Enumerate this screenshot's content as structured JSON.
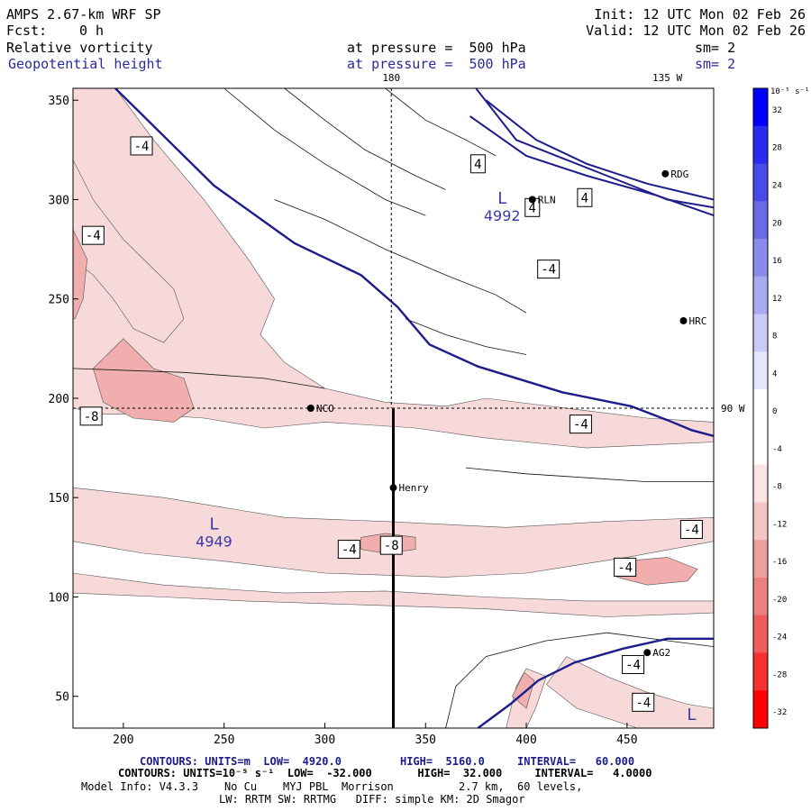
{
  "header": {
    "model": "AMPS 2.67-km WRF SP",
    "init": "Init: 12 UTC Mon 02 Feb 26",
    "fcst_label": "Fcst:",
    "fcst_value": "0 h",
    "valid": "Valid: 12 UTC Mon 02 Feb 26",
    "field1": "Relative vorticity",
    "field1_level": "at pressure =  500 hPa",
    "field1_sm": "sm= 2",
    "field2": "Geopotential height",
    "field2_level": "at pressure =  500 hPa",
    "field2_sm": "sm= 2"
  },
  "footer": {
    "line1": "CONTOURS: UNITS=m  LOW=  4920.0         HIGH=  5160.0     INTERVAL=   60.000",
    "line2": "CONTOURS: UNITS=10⁻⁵ s⁻¹  LOW=  -32.000       HIGH=  32.000     INTERVAL=   4.0000",
    "line3": "Model Info: V4.3.3    No Cu    MYJ PBL  Morrison          2.7 km,  60 levels,",
    "line4": "LW: RRTM SW: RRTMG   DIFF: simple KM: 2D Smagor"
  },
  "colors": {
    "height_contour": "#1c1c8c",
    "neg_light": "#f7d9d9",
    "neg_mid": "#f0aeae",
    "neg_strong": "#e87878",
    "neg_max": "#ff0000",
    "pos_max": "#0000ff"
  },
  "chart_data": {
    "type": "heatmap",
    "x_ticks": [
      200,
      250,
      300,
      350,
      400,
      450
    ],
    "y_ticks": [
      50,
      100,
      150,
      200,
      250,
      300,
      350
    ],
    "xlim": [
      175,
      493
    ],
    "ylim": [
      34,
      356
    ],
    "top_labels": [
      {
        "text": "180",
        "x": 333
      },
      {
        "text": "135 W",
        "x": 470
      }
    ],
    "right_labels": [
      {
        "text": "90 W",
        "y": 195
      }
    ],
    "guide_lines": {
      "vertical_x": 333,
      "horizontal_y": 195
    },
    "cross_section": {
      "x": 334,
      "y_from": 34,
      "y_to": 195
    },
    "stations": [
      {
        "name": "NCO",
        "x": 293,
        "y": 195
      },
      {
        "name": "Henry",
        "x": 334,
        "y": 155
      },
      {
        "name": "HRC",
        "x": 478,
        "y": 239
      },
      {
        "name": "RDG",
        "x": 469,
        "y": 313
      },
      {
        "name": "RLN",
        "x": 403,
        "y": 300
      },
      {
        "name": "AG2",
        "x": 460,
        "y": 72
      }
    ],
    "height_lows": [
      {
        "label": "L",
        "value": "4992",
        "x": 388,
        "y": 298
      },
      {
        "label": "L",
        "value": "4949",
        "x": 245,
        "y": 134
      },
      {
        "label": "L",
        "value": "",
        "x": 482,
        "y": 38
      }
    ],
    "height_contours": [
      {
        "points": [
          [
            196,
            356
          ],
          [
            245,
            307
          ],
          [
            285,
            278
          ],
          [
            318,
            262
          ],
          [
            336,
            246
          ],
          [
            352,
            227
          ],
          [
            376,
            216
          ],
          [
            418,
            203
          ],
          [
            452,
            196
          ],
          [
            470,
            189
          ],
          [
            482,
            184
          ],
          [
            493,
            181
          ]
        ]
      },
      {
        "points": [
          [
            376,
            34
          ],
          [
            392,
            46
          ],
          [
            406,
            58
          ],
          [
            424,
            67
          ],
          [
            448,
            74
          ],
          [
            470,
            79
          ],
          [
            493,
            79
          ]
        ]
      }
    ],
    "vorticity_labels": [
      {
        "text": "-4",
        "x": 209,
        "y": 327
      },
      {
        "text": "-4",
        "x": 185,
        "y": 282
      },
      {
        "text": "-8",
        "x": 184,
        "y": 191
      },
      {
        "text": "-4",
        "x": 427,
        "y": 187
      },
      {
        "text": "-4",
        "x": 482,
        "y": 134
      },
      {
        "text": "-4",
        "x": 449,
        "y": 115
      },
      {
        "text": "-4",
        "x": 312,
        "y": 124
      },
      {
        "text": "-8",
        "x": 333,
        "y": 126
      },
      {
        "text": "-4",
        "x": 453,
        "y": 66
      },
      {
        "text": "-4",
        "x": 411,
        "y": 265
      },
      {
        "text": "4",
        "x": 376,
        "y": 318
      },
      {
        "text": "4",
        "x": 403,
        "y": 296
      },
      {
        "text": "4",
        "x": 429,
        "y": 301
      },
      {
        "text": "-4",
        "x": 458,
        "y": 47
      }
    ],
    "colorbar": {
      "unit": "10⁻⁵ s⁻¹",
      "levels": [
        32,
        28,
        24,
        20,
        16,
        12,
        8,
        4,
        0,
        -4,
        -8,
        -12,
        -16,
        -20,
        -24,
        -28,
        -32
      ],
      "colors": [
        "#0000ff",
        "#2a2aee",
        "#4a4ae6",
        "#6a6ae6",
        "#8a8aea",
        "#aaaaf0",
        "#cacaf6",
        "#e6e6fb",
        "#ffffff",
        "#ffffff",
        "#fbe4e4",
        "#f5c4c4",
        "#eea0a0",
        "#ea8080",
        "#ee5c5c",
        "#f43030",
        "#ff0000"
      ]
    }
  }
}
